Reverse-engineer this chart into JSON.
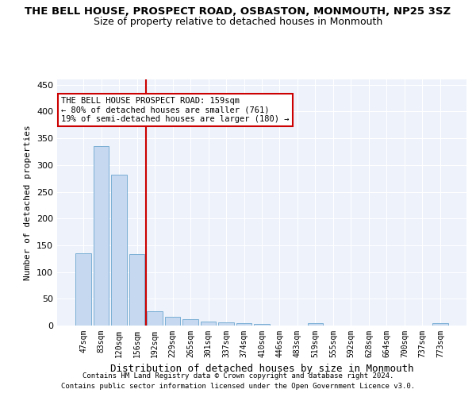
{
  "title": "THE BELL HOUSE, PROSPECT ROAD, OSBASTON, MONMOUTH, NP25 3SZ",
  "subtitle": "Size of property relative to detached houses in Monmouth",
  "xlabel": "Distribution of detached houses by size in Monmouth",
  "ylabel": "Number of detached properties",
  "bar_labels": [
    "47sqm",
    "83sqm",
    "120sqm",
    "156sqm",
    "192sqm",
    "229sqm",
    "265sqm",
    "301sqm",
    "337sqm",
    "374sqm",
    "410sqm",
    "446sqm",
    "483sqm",
    "519sqm",
    "555sqm",
    "592sqm",
    "628sqm",
    "664sqm",
    "700sqm",
    "737sqm",
    "773sqm"
  ],
  "bar_values": [
    135,
    335,
    282,
    133,
    27,
    16,
    12,
    7,
    6,
    5,
    3,
    0,
    0,
    4,
    0,
    0,
    0,
    0,
    0,
    0,
    4
  ],
  "bar_color": "#c5d8f0",
  "bar_edge_color": "#7bafd4",
  "vline_x": 3.5,
  "vline_color": "#cc0000",
  "annotation_text": "THE BELL HOUSE PROSPECT ROAD: 159sqm\n← 80% of detached houses are smaller (761)\n19% of semi-detached houses are larger (180) →",
  "annotation_box_color": "#ffffff",
  "annotation_box_edge": "#cc0000",
  "ylim": [
    0,
    460
  ],
  "yticks": [
    0,
    50,
    100,
    150,
    200,
    250,
    300,
    350,
    400,
    450
  ],
  "bg_color": "#edf2fb",
  "footer_line1": "Contains HM Land Registry data © Crown copyright and database right 2024.",
  "footer_line2": "Contains public sector information licensed under the Open Government Licence v3.0.",
  "title_fontsize": 9.5,
  "subtitle_fontsize": 9
}
